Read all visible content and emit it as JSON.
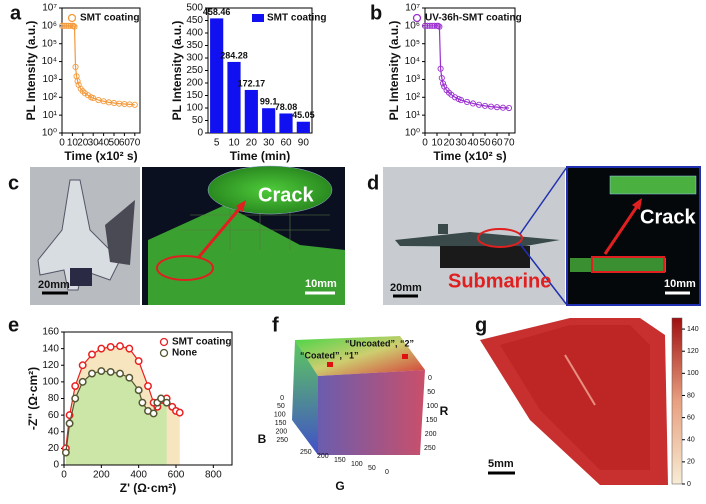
{
  "panels": {
    "a": "a",
    "b": "b",
    "c": "c",
    "d": "d",
    "e": "e",
    "f": "f",
    "g": "g",
    "c_crack": "Crack",
    "c_scale_left": "20mm",
    "c_scale_right": "10mm",
    "d_submarine": "Submarine",
    "d_crack": "Crack",
    "d_scale_left": "20mm",
    "d_scale_right": "10mm",
    "g_scale": "5mm"
  },
  "chart_data": [
    {
      "type": "line",
      "xlabel": "Time (x10² s)",
      "ylabel": "PL Intensity (a.u.)",
      "log_y": true,
      "legend": "upper right",
      "series": [
        {
          "name": "SMT coating",
          "color": "#f39a3c",
          "x": [
            0,
            2,
            4,
            6,
            8,
            10,
            11,
            12,
            13,
            14,
            15,
            16,
            18,
            20,
            22,
            25,
            28,
            30,
            35,
            40,
            45,
            50,
            55,
            60,
            65,
            70
          ],
          "values": [
            1000000,
            1000000,
            1000000,
            1000000,
            1000000,
            1000000,
            1000000,
            900000,
            5000,
            1500,
            800,
            500,
            300,
            220,
            170,
            130,
            100,
            90,
            70,
            60,
            52,
            48,
            44,
            42,
            40,
            38
          ]
        }
      ],
      "xlim": [
        0,
        75
      ],
      "xticks": [
        0,
        10,
        20,
        30,
        40,
        50,
        60,
        70
      ],
      "ylim": [
        1,
        10000000
      ],
      "yticks": [
        {
          "value": 1,
          "label": "10⁰"
        },
        {
          "value": 10,
          "label": "10¹"
        },
        {
          "value": 100,
          "label": "10²"
        },
        {
          "value": 1000,
          "label": "10³"
        },
        {
          "value": 10000,
          "label": "10⁴"
        },
        {
          "value": 100000,
          "label": "10⁵"
        },
        {
          "value": 1000000,
          "label": "10⁶"
        },
        {
          "value": 10000000,
          "label": "10⁷"
        }
      ]
    },
    {
      "type": "bar",
      "xlabel": "Time (min)",
      "ylabel": "PL Intensity (a.u.)",
      "legend": "upper right",
      "categories": [
        "5",
        "10",
        "20",
        "30",
        "60",
        "90"
      ],
      "series": [
        {
          "name": "SMT coating",
          "color": "#1010f0",
          "values": [
            458.46,
            284.28,
            172.17,
            99.1,
            78.08,
            45.05
          ]
        }
      ],
      "ylim": [
        0,
        500
      ],
      "yticks": [
        0,
        50,
        100,
        150,
        200,
        250,
        300,
        350,
        400,
        450,
        500
      ]
    },
    {
      "type": "line",
      "xlabel": "Time (x10² s)",
      "ylabel": "PL Intensity (a.u.)",
      "log_y": true,
      "legend": "upper right",
      "series": [
        {
          "name": "UV-36h-SMT coating",
          "color": "#9b2fd0",
          "x": [
            0,
            2,
            4,
            6,
            8,
            10,
            11,
            12,
            13,
            14,
            15,
            16,
            18,
            20,
            22,
            25,
            28,
            30,
            35,
            40,
            45,
            50,
            55,
            60,
            65,
            70
          ],
          "values": [
            1000000,
            1000000,
            1000000,
            1000000,
            1000000,
            1000000,
            1000000,
            900000,
            4000,
            1200,
            600,
            400,
            250,
            180,
            140,
            100,
            80,
            70,
            55,
            45,
            38,
            33,
            30,
            28,
            26,
            25
          ]
        }
      ],
      "xlim": [
        0,
        75
      ],
      "xticks": [
        0,
        10,
        20,
        30,
        40,
        50,
        60,
        70
      ],
      "ylim": [
        1,
        10000000
      ],
      "yticks": [
        {
          "value": 1,
          "label": "10⁰"
        },
        {
          "value": 10,
          "label": "10¹"
        },
        {
          "value": 100,
          "label": "10²"
        },
        {
          "value": 1000,
          "label": "10³"
        },
        {
          "value": 10000,
          "label": "10⁴"
        },
        {
          "value": 100000,
          "label": "10⁵"
        },
        {
          "value": 1000000,
          "label": "10⁶"
        },
        {
          "value": 10000000,
          "label": "10⁷"
        }
      ]
    },
    {
      "type": "line",
      "xlabel": "Z' (Ω·cm²)",
      "ylabel": "-Z'' (Ω·cm²)",
      "legend": "upper right",
      "area": true,
      "series": [
        {
          "name": "SMT coating",
          "color": "#e82020",
          "area_color": "#f5deb0",
          "x": [
            10,
            30,
            60,
            100,
            150,
            200,
            250,
            300,
            350,
            400,
            450,
            480,
            500,
            520,
            550,
            580,
            600,
            620
          ],
          "values": [
            20,
            60,
            95,
            120,
            133,
            140,
            142,
            143,
            140,
            125,
            95,
            75,
            70,
            78,
            80,
            70,
            65,
            63
          ]
        },
        {
          "name": "None",
          "color": "#555533",
          "area_color": "#bfe6a0",
          "x": [
            10,
            30,
            60,
            100,
            150,
            200,
            250,
            300,
            350,
            400,
            420,
            450,
            480,
            500,
            520,
            550
          ],
          "values": [
            15,
            50,
            80,
            100,
            110,
            113,
            112,
            110,
            105,
            90,
            75,
            65,
            62,
            75,
            80,
            75
          ]
        }
      ],
      "xlim": [
        0,
        900
      ],
      "xticks": [
        0,
        200,
        400,
        600,
        800
      ],
      "ylim": [
        0,
        160
      ],
      "yticks": [
        0,
        20,
        40,
        60,
        80,
        100,
        120,
        140,
        160
      ]
    },
    {
      "type": "colorbar",
      "ylim": [
        0,
        150
      ],
      "yticks": [
        0,
        20,
        40,
        60,
        80,
        100,
        120,
        140
      ],
      "colors": [
        "#f7ecd4",
        "#e8a080",
        "#a01010"
      ]
    },
    {
      "type": "colorcube",
      "axes": [
        {
          "label": "B",
          "lim": [
            0,
            250
          ],
          "ticks": [
            0,
            50,
            100,
            150,
            200,
            250
          ]
        },
        {
          "label": "G",
          "lim": [
            0,
            250
          ],
          "ticks": [
            250,
            200,
            150,
            100,
            50,
            0
          ]
        },
        {
          "label": "R",
          "lim": [
            0,
            250
          ],
          "ticks": [
            0,
            50,
            100,
            150,
            200,
            250
          ]
        }
      ],
      "annotations": [
        {
          "text": "“Coated”, “1”",
          "color": "#e01010"
        },
        {
          "text": "“Uncoated”, “2”",
          "color": "#e01010"
        }
      ]
    }
  ]
}
